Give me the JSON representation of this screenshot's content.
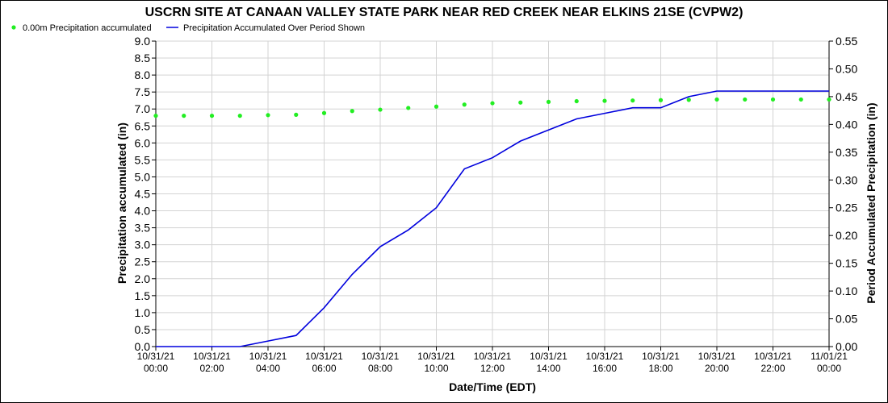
{
  "chart_data": {
    "type": "line",
    "title": "USCRN SITE AT CANAAN VALLEY STATE PARK NEAR RED CREEK NEAR ELKINS 21SE (CVPW2)",
    "xlabel": "Date/Time (EDT)",
    "ylabel_left": "Precipitation accumulated (in)",
    "ylabel_right": "Period Accumulated Precipitation (in)",
    "ylim_left": [
      0,
      9.0
    ],
    "ylim_right": [
      0,
      0.55
    ],
    "yticks_left": [
      "0.0",
      "0.5",
      "1.0",
      "1.5",
      "2.0",
      "2.5",
      "3.0",
      "3.5",
      "4.0",
      "4.5",
      "5.0",
      "5.5",
      "6.0",
      "6.5",
      "7.0",
      "7.5",
      "8.0",
      "8.5",
      "9.0"
    ],
    "yticks_right": [
      "0.00",
      "0.05",
      "0.10",
      "0.15",
      "0.20",
      "0.25",
      "0.30",
      "0.35",
      "0.40",
      "0.45",
      "0.50",
      "0.55"
    ],
    "xlim_hours": [
      0,
      24
    ],
    "xticks": [
      {
        "date": "10/31/21",
        "time": "00:00"
      },
      {
        "date": "10/31/21",
        "time": "02:00"
      },
      {
        "date": "10/31/21",
        "time": "04:00"
      },
      {
        "date": "10/31/21",
        "time": "06:00"
      },
      {
        "date": "10/31/21",
        "time": "08:00"
      },
      {
        "date": "10/31/21",
        "time": "10:00"
      },
      {
        "date": "10/31/21",
        "time": "12:00"
      },
      {
        "date": "10/31/21",
        "time": "14:00"
      },
      {
        "date": "10/31/21",
        "time": "16:00"
      },
      {
        "date": "10/31/21",
        "time": "18:00"
      },
      {
        "date": "10/31/21",
        "time": "20:00"
      },
      {
        "date": "10/31/21",
        "time": "22:00"
      },
      {
        "date": "11/01/21",
        "time": "00:00"
      }
    ],
    "grid": true,
    "legend_position": "top-left",
    "series": [
      {
        "name": "0.00m Precipitation accumulated",
        "type": "scatter",
        "axis": "left",
        "color": "#22ee22",
        "x": [
          0,
          1,
          2,
          3,
          4,
          5,
          6,
          7,
          8,
          9,
          10,
          11,
          12,
          13,
          14,
          15,
          16,
          17,
          18,
          19,
          20,
          21,
          22,
          23,
          24
        ],
        "values": [
          6.8,
          6.8,
          6.8,
          6.8,
          6.82,
          6.83,
          6.88,
          6.94,
          6.98,
          7.03,
          7.07,
          7.13,
          7.17,
          7.19,
          7.21,
          7.23,
          7.24,
          7.25,
          7.26,
          7.27,
          7.28,
          7.28,
          7.28,
          7.28,
          7.28
        ]
      },
      {
        "name": "Precipitation Accumulated Over Period Shown",
        "type": "line",
        "axis": "right",
        "color": "#0000dd",
        "x": [
          0,
          1,
          2,
          3,
          4,
          5,
          6,
          7,
          8,
          9,
          10,
          11,
          12,
          13,
          14,
          15,
          16,
          17,
          18,
          19,
          20,
          21,
          22,
          23,
          24
        ],
        "values": [
          0,
          0,
          0,
          0,
          0.01,
          0.02,
          0.07,
          0.13,
          0.18,
          0.21,
          0.25,
          0.32,
          0.34,
          0.37,
          0.39,
          0.41,
          0.42,
          0.43,
          0.43,
          0.45,
          0.46,
          0.46,
          0.46,
          0.46,
          0.46
        ]
      }
    ]
  }
}
